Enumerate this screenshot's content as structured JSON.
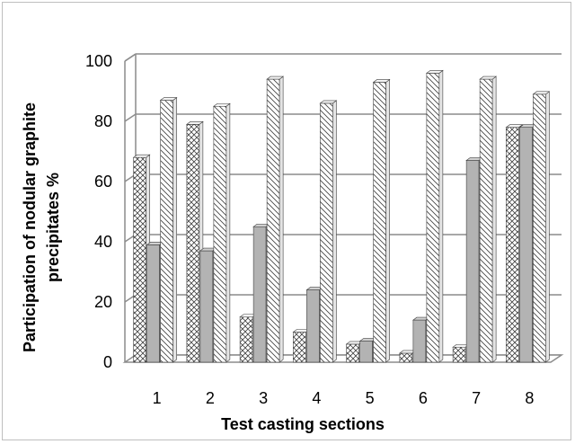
{
  "chart_data": {
    "type": "bar",
    "title": "",
    "xlabel": "Test casting sections",
    "ylabel": "Participation of nodular graphite precipitates %",
    "categories": [
      "1",
      "2",
      "3",
      "4",
      "5",
      "6",
      "7",
      "8"
    ],
    "ylim": [
      0,
      100
    ],
    "yticks": [
      "0",
      "20",
      "40",
      "60",
      "80",
      "100"
    ],
    "grid": true,
    "legend": "none",
    "style": "3d-clustered",
    "series": [
      {
        "values": [
          68,
          79,
          15,
          10,
          6,
          3,
          5,
          78
        ],
        "fill": "cross-hatch",
        "color": "#ffffff"
      },
      {
        "values": [
          39,
          37,
          45,
          24,
          7,
          14,
          67,
          78
        ],
        "fill": "solid",
        "color": "#b3b3b3"
      },
      {
        "values": [
          87,
          85,
          94,
          86,
          93,
          96,
          94,
          89
        ],
        "fill": "diagonal-hatch",
        "color": "#ffffff"
      }
    ],
    "colors": {
      "grid": "#8c8c8c",
      "axis": "#8c8c8c",
      "outline": "#404040",
      "text": "#000000"
    }
  }
}
